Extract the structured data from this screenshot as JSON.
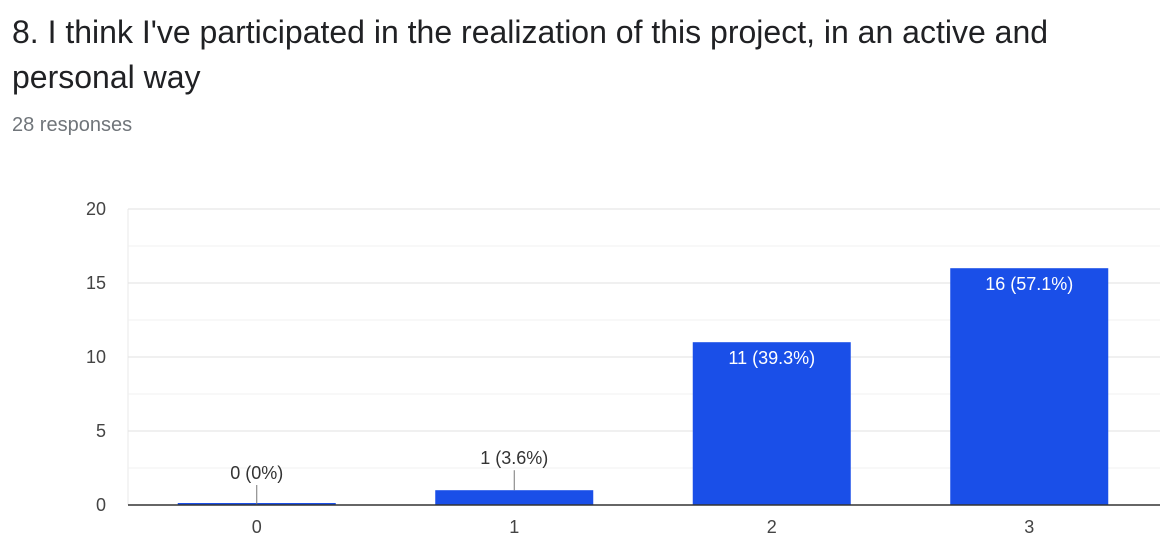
{
  "question": {
    "title": "8. I think I've participated in the realization of this project, in an active and personal way",
    "responses": "28 responses"
  },
  "colors": {
    "bar": "#1a4fe8",
    "label_inside": "#ffffff",
    "label_outside": "#333333",
    "grid": "#e8e8e8",
    "baseline": "#333333"
  },
  "chart_data": {
    "type": "bar",
    "categories": [
      "0",
      "1",
      "2",
      "3"
    ],
    "values": [
      0,
      1,
      11,
      16
    ],
    "data_labels": [
      "0 (0%)",
      "1 (3.6%)",
      "11 (39.3%)",
      "16 (57.1%)"
    ],
    "y_ticks": [
      "0",
      "5",
      "10",
      "15",
      "20"
    ],
    "ylim": [
      0,
      20
    ],
    "grid": true,
    "legend": "none"
  }
}
